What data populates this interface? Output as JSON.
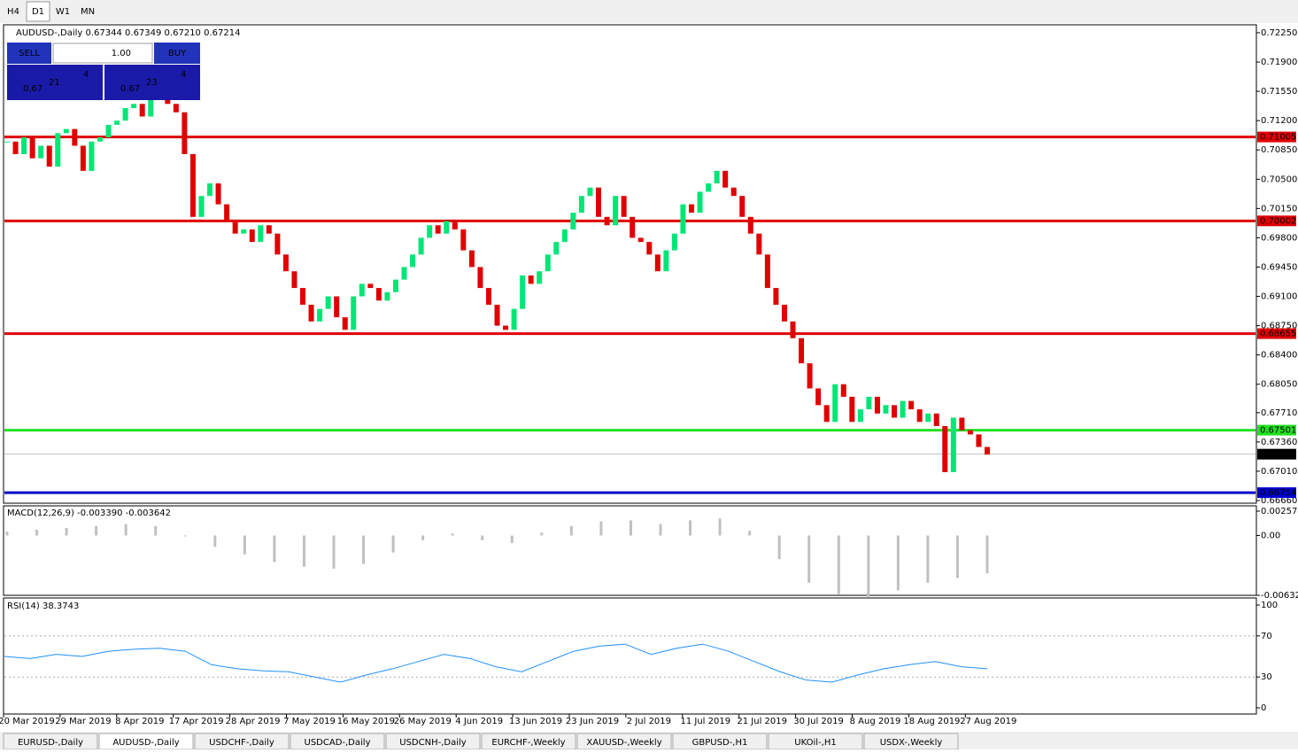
{
  "toolbar": {
    "timeframes": [
      "H4",
      "D1",
      "W1",
      "MN"
    ]
  },
  "chart": {
    "header": "AUDUSD-,Daily  0.67344 0.67349 0.67210 0.67214",
    "trade_panel": {
      "sell": "SELL",
      "volume": "1.00",
      "buy": "BUY",
      "bid": {
        "big": "0.67",
        "main": "21",
        "sup": "4"
      },
      "ask": {
        "big": "0.67",
        "main": "23",
        "sup": "4"
      }
    },
    "ylim": [
      0.6666,
      0.7225
    ],
    "yticks": [
      {
        "value": 0.7225,
        "label": "0.72250"
      },
      {
        "value": 0.719,
        "label": "0.71900"
      },
      {
        "value": 0.7155,
        "label": "0.71550"
      },
      {
        "value": 0.712,
        "label": "0.71200"
      },
      {
        "value": 0.7085,
        "label": "0.70850"
      },
      {
        "value": 0.705,
        "label": "0.70500"
      },
      {
        "value": 0.7015,
        "label": "0.70150"
      },
      {
        "value": 0.698,
        "label": "0.69800"
      },
      {
        "value": 0.6945,
        "label": "0.69450"
      },
      {
        "value": 0.691,
        "label": "0.69100"
      },
      {
        "value": 0.6875,
        "label": "0.68750"
      },
      {
        "value": 0.684,
        "label": "0.68400"
      },
      {
        "value": 0.6805,
        "label": "0.68050"
      },
      {
        "value": 0.6771,
        "label": "0.67710"
      },
      {
        "value": 0.6736,
        "label": "0.67360"
      },
      {
        "value": 0.6701,
        "label": "0.67010"
      },
      {
        "value": 0.6666,
        "label": "0.66660"
      }
    ],
    "levels": [
      {
        "value": 0.71005,
        "color": "#e00000"
      },
      {
        "value": 0.70002,
        "color": "#e00000"
      },
      {
        "value": 0.68655,
        "color": "#e00000"
      },
      {
        "value": 0.67501,
        "color": "#22e022"
      },
      {
        "value": 0.66754,
        "color": "#0000cc"
      }
    ],
    "current": 0.67214,
    "closes": [
      0.7095,
      0.708,
      0.71,
      0.7075,
      0.709,
      0.7065,
      0.7105,
      0.711,
      0.709,
      0.706,
      0.7095,
      0.71,
      0.7115,
      0.712,
      0.7135,
      0.714,
      0.7125,
      0.7145,
      0.715,
      0.714,
      0.713,
      0.708,
      0.7005,
      0.703,
      0.7045,
      0.702,
      0.7,
      0.6985,
      0.699,
      0.6975,
      0.6995,
      0.6985,
      0.696,
      0.694,
      0.692,
      0.69,
      0.688,
      0.6895,
      0.691,
      0.6885,
      0.687,
      0.691,
      0.6925,
      0.692,
      0.6905,
      0.6915,
      0.693,
      0.6945,
      0.696,
      0.698,
      0.6995,
      0.6985,
      0.7,
      0.699,
      0.6965,
      0.6945,
      0.692,
      0.69,
      0.6875,
      0.687,
      0.6895,
      0.6935,
      0.6925,
      0.694,
      0.696,
      0.6975,
      0.699,
      0.701,
      0.703,
      0.704,
      0.7005,
      0.6995,
      0.703,
      0.7005,
      0.698,
      0.6975,
      0.696,
      0.694,
      0.6965,
      0.6985,
      0.702,
      0.701,
      0.7035,
      0.7045,
      0.706,
      0.704,
      0.703,
      0.7005,
      0.6985,
      0.696,
      0.692,
      0.69,
      0.688,
      0.686,
      0.683,
      0.68,
      0.678,
      0.676,
      0.6805,
      0.679,
      0.676,
      0.6775,
      0.679,
      0.677,
      0.678,
      0.6765,
      0.6785,
      0.6775,
      0.676,
      0.677,
      0.6755,
      0.67,
      0.6765,
      0.675,
      0.6745,
      0.673,
      0.6721
    ],
    "dates": [
      "20 Mar 2019",
      "29 Mar 2019",
      "8 Apr 2019",
      "17 Apr 2019",
      "28 Apr 2019",
      "7 May 2019",
      "16 May 2019",
      "26 May 2019",
      "4 Jun 2019",
      "13 Jun 2019",
      "23 Jun 2019",
      "2 Jul 2019",
      "11 Jul 2019",
      "21 Jul 2019",
      "30 Jul 2019",
      "8 Aug 2019",
      "18 Aug 2019",
      "27 Aug 2019"
    ]
  },
  "macd": {
    "label": "MACD(12,26,9) -0.003390 -0.003642",
    "ylim": [
      -0.006326,
      0.002574
    ],
    "yticks": [
      0.002574,
      {
        "value": 0,
        "label": "0.00"
      },
      -0.006326
    ],
    "values": [
      0.0004,
      0.0006,
      0.0008,
      0.001,
      0.0012,
      0.001,
      0,
      -0.0012,
      -0.002,
      -0.0028,
      -0.0033,
      -0.0035,
      -0.003,
      -0.0018,
      -0.0005,
      0.0002,
      -0.0005,
      -0.0008,
      0.0003,
      0.001,
      0.0015,
      0.0016,
      0.0012,
      0.0016,
      0.0018,
      0.0005,
      -0.0025,
      -0.005,
      -0.0062,
      -0.0065,
      -0.0058,
      -0.005,
      -0.0045,
      -0.004
    ]
  },
  "rsi": {
    "label": "RSI(14) 38.3743",
    "ylim": [
      0,
      100
    ],
    "yticks": [
      100,
      70,
      30,
      0
    ],
    "values": [
      50,
      48,
      52,
      50,
      55,
      57,
      58,
      55,
      42,
      38,
      36,
      35,
      30,
      25,
      32,
      38,
      45,
      52,
      48,
      40,
      35,
      45,
      55,
      60,
      62,
      52,
      58,
      62,
      55,
      45,
      35,
      27,
      25,
      32,
      38,
      42,
      45,
      40,
      38
    ]
  },
  "tabs": [
    "EURUSD-,Daily",
    "AUDUSD-,Daily",
    "USDCHF-,Daily",
    "USDCAD-,Daily",
    "USDCNH-,Daily",
    "EURCHF-,Weekly",
    "XAUUSD-,Weekly",
    "GBPUSD-,H1",
    "UKOil-,H1",
    "USDX-,Weekly"
  ]
}
